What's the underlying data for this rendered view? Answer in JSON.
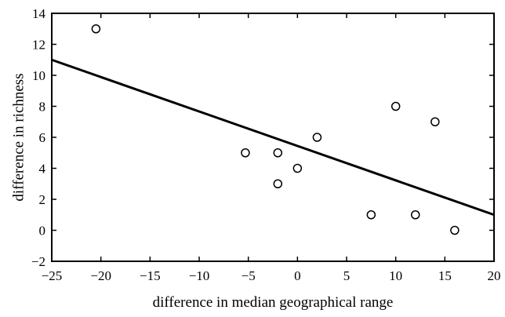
{
  "chart_data": {
    "type": "scatter",
    "title": "",
    "xlabel": "difference in median geographical range",
    "ylabel": "difference in richness",
    "xlim": [
      -25,
      20
    ],
    "ylim": [
      -2,
      14
    ],
    "xticks": [
      -25,
      -20,
      -15,
      -10,
      -5,
      0,
      5,
      10,
      15,
      20
    ],
    "yticks": [
      -2,
      0,
      2,
      4,
      6,
      8,
      10,
      12,
      14
    ],
    "xtick_labels": [
      "−25",
      "−20",
      "−15",
      "−10",
      "−5",
      "0",
      "5",
      "10",
      "15",
      "20"
    ],
    "ytick_labels": [
      "−2",
      "0",
      "2",
      "4",
      "6",
      "8",
      "10",
      "12",
      "14"
    ],
    "grid": false,
    "legend": false,
    "series": [
      {
        "marker": "open-circle",
        "points": [
          {
            "x": -20.5,
            "y": 13
          },
          {
            "x": -5.3,
            "y": 5
          },
          {
            "x": -2,
            "y": 5
          },
          {
            "x": -2,
            "y": 3
          },
          {
            "x": 0,
            "y": 4
          },
          {
            "x": 2,
            "y": 6
          },
          {
            "x": 7.5,
            "y": 1
          },
          {
            "x": 10,
            "y": 8
          },
          {
            "x": 12,
            "y": 1
          },
          {
            "x": 14,
            "y": 7
          },
          {
            "x": 16,
            "y": 0
          }
        ]
      }
    ],
    "fit_line": {
      "x": [
        -25,
        20
      ],
      "y": [
        11,
        1
      ]
    }
  }
}
